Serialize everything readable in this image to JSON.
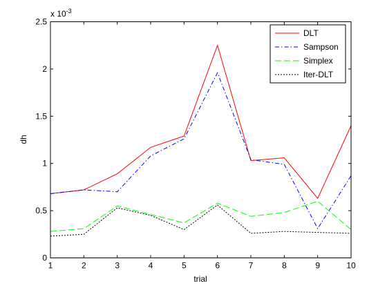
{
  "chart_data": {
    "type": "line",
    "xlabel": "trial",
    "ylabel": "dh",
    "axis_multiplier": "x 10",
    "axis_multiplier_exponent": "-3",
    "x": [
      1,
      2,
      3,
      4,
      5,
      6,
      7,
      8,
      9,
      10
    ],
    "xlim": [
      1,
      10
    ],
    "ylim": [
      0,
      0.0025
    ],
    "x_ticks": [
      "1",
      "2",
      "3",
      "4",
      "5",
      "6",
      "7",
      "8",
      "9",
      "10"
    ],
    "y_ticks": [
      {
        "value": 0,
        "label": "0"
      },
      {
        "value": 0.0005,
        "label": "0.5"
      },
      {
        "value": 0.001,
        "label": "1"
      },
      {
        "value": 0.0015,
        "label": "1.5"
      },
      {
        "value": 0.002,
        "label": "2"
      },
      {
        "value": 0.0025,
        "label": "2.5"
      }
    ],
    "grid": false,
    "legend_position": "top-right",
    "series": [
      {
        "name": "DLT",
        "color": "#ff0000",
        "line_style": "solid",
        "values": [
          0.00068,
          0.00072,
          0.00089,
          0.00117,
          0.00129,
          0.00225,
          0.00103,
          0.00106,
          0.00063,
          0.0014
        ]
      },
      {
        "name": "Sampson",
        "color": "#0000ff",
        "line_style": "dash-dot",
        "values": [
          0.00068,
          0.00072,
          0.0007,
          0.00108,
          0.00126,
          0.00196,
          0.00104,
          0.00099,
          0.00031,
          0.00087
        ]
      },
      {
        "name": "Simplex",
        "color": "#00ff00",
        "line_style": "dashed",
        "values": [
          0.00028,
          0.00031,
          0.00055,
          0.00046,
          0.00037,
          0.00058,
          0.00044,
          0.00048,
          0.0006,
          0.0003
        ]
      },
      {
        "name": "Iter-DLT",
        "color": "#000000",
        "line_style": "dotted",
        "values": [
          0.00023,
          0.00025,
          0.00053,
          0.00045,
          0.0003,
          0.00056,
          0.00026,
          0.00028,
          0.00027,
          0.00026
        ]
      }
    ]
  }
}
